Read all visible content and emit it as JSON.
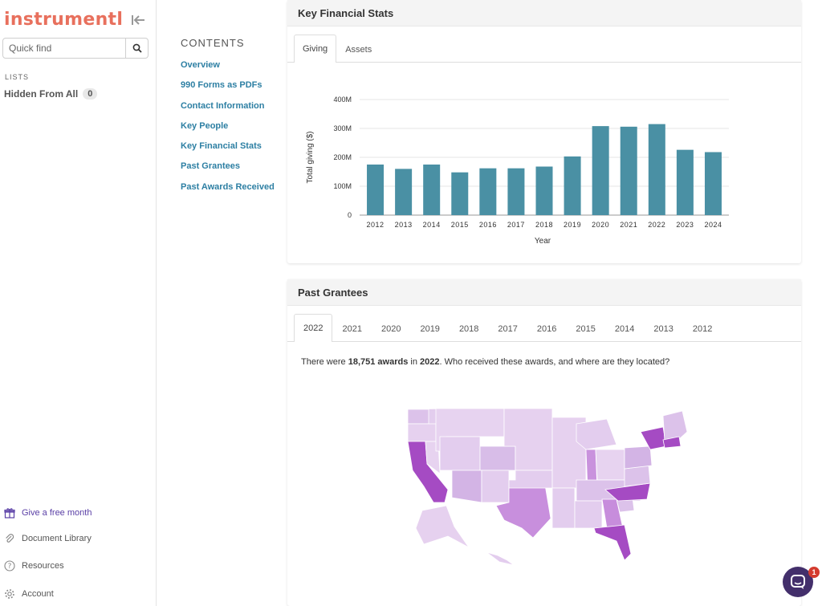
{
  "sidebar": {
    "logo": "instrumentl",
    "search_placeholder": "Quick find",
    "lists_label": "LISTS",
    "hidden_list": {
      "label": "Hidden From All",
      "count": "0"
    },
    "footer": [
      {
        "label": "Give a free month",
        "icon": "gift-icon"
      },
      {
        "label": "Document Library",
        "icon": "paperclip-icon"
      },
      {
        "label": "Resources",
        "icon": "help-circle-icon"
      },
      {
        "label": "Account",
        "icon": "gear-icon"
      }
    ]
  },
  "contents": {
    "title": "CONTENTS",
    "links": [
      "Overview",
      "990 Forms as PDFs",
      "Contact Information",
      "Key People",
      "Key Financial Stats",
      "Past Grantees",
      "Past Awards Received"
    ]
  },
  "financial": {
    "title": "Key Financial Stats",
    "tabs": [
      "Giving",
      "Assets"
    ],
    "active_tab": "Giving"
  },
  "chart_data": {
    "type": "bar",
    "categories": [
      "2012",
      "2013",
      "2014",
      "2015",
      "2016",
      "2017",
      "2018",
      "2019",
      "2020",
      "2021",
      "2022",
      "2023",
      "2024"
    ],
    "values": [
      175,
      160,
      175,
      148,
      162,
      162,
      168,
      203,
      308,
      306,
      315,
      226,
      218
    ],
    "xlabel": "Year",
    "ylabel": "Total giving ($)",
    "ylim": [
      0,
      400
    ],
    "yticks": [
      0,
      100,
      200,
      300,
      400
    ],
    "ytick_labels": [
      "0",
      "100M",
      "200M",
      "300M",
      "400M"
    ],
    "grid": true,
    "bar_color": "#4a90a4"
  },
  "grantees": {
    "title": "Past Grantees",
    "year_tabs": [
      "2022",
      "2021",
      "2020",
      "2019",
      "2018",
      "2017",
      "2016",
      "2015",
      "2014",
      "2013",
      "2012"
    ],
    "active_year": "2022",
    "summary_pre": "There were ",
    "summary_count": "18,751 awards",
    "summary_mid": " in ",
    "summary_year": "2022",
    "summary_post": ". Who received these awards, and where are they located?"
  },
  "map_colors": {
    "low": "#e3cdee",
    "mid": "#c88fdd",
    "high": "#a54bc3",
    "border": "#ffffff"
  },
  "chat": {
    "badge": "1",
    "icon": "chat-icon"
  }
}
